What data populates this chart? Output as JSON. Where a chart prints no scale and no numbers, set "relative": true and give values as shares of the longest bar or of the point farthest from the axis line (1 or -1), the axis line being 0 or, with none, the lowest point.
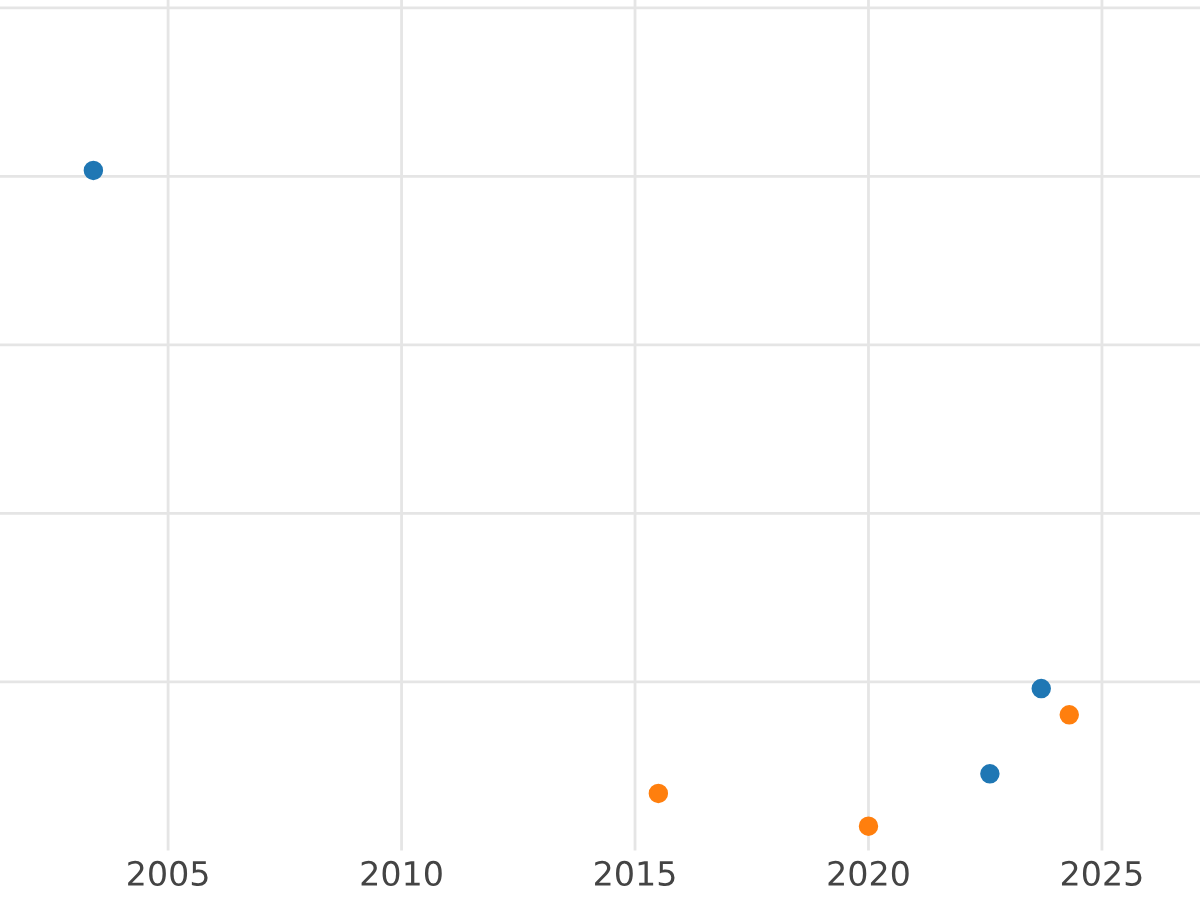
{
  "chart_data": {
    "type": "scatter",
    "relative": true,
    "xlim": [
      2001.4,
      2027.1
    ],
    "xticks": [
      2005,
      2010,
      2015,
      2020,
      2025
    ],
    "grid": true,
    "tick_labels": "x",
    "marker": "circle",
    "series": [
      {
        "color": "#1f77b4",
        "x": [
          2003.4,
          2022.6,
          2023.7
        ],
        "values": [
          1.0,
          0.08,
          0.21
        ]
      },
      {
        "color": "#ff7f0e",
        "x": [
          2015.5,
          2020.0,
          2024.3
        ],
        "values": [
          0.05,
          0.0,
          0.17
        ]
      }
    ]
  }
}
